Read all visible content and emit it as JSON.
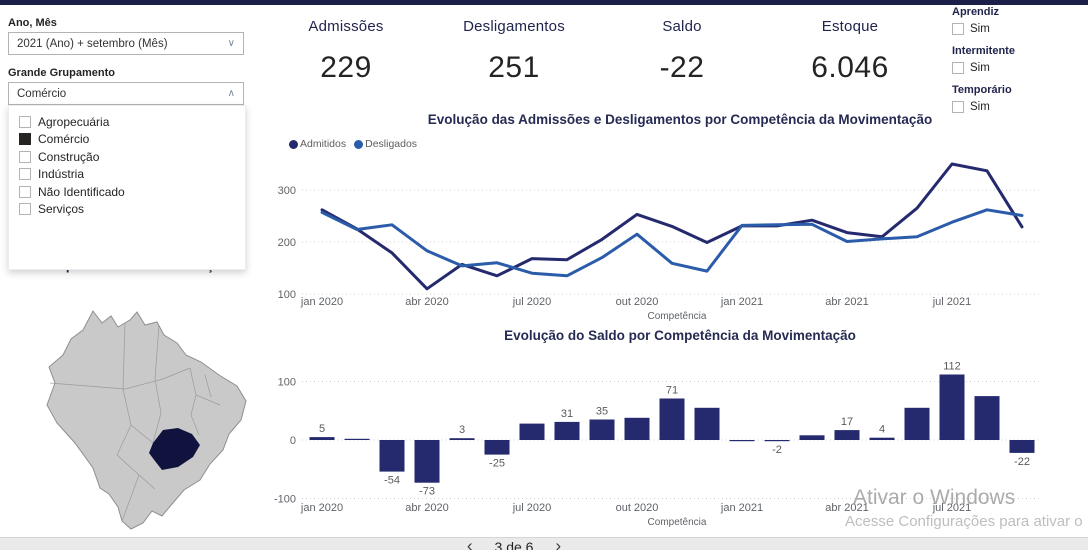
{
  "colors": {
    "topbar": "#1b1f4a",
    "series_admitidos": "#252a6e",
    "series_desligados": "#2b5ca9",
    "bar": "#252a6e",
    "map_base": "#c9c9c9",
    "map_border": "#8f8f8f",
    "map_highlight": "#11133f",
    "axis_text": "#5f6368",
    "gridline": "#cfcfcf"
  },
  "sidebar": {
    "year_month": {
      "label": "Ano, Mês",
      "value": "2021 (Ano) + setembro (Mês)"
    },
    "grouping": {
      "label": "Grande Grupamento",
      "value": "Comércio",
      "options": [
        {
          "label": "Agropecuária",
          "checked": false
        },
        {
          "label": "Comércio",
          "checked": true
        },
        {
          "label": "Construção",
          "checked": false
        },
        {
          "label": "Indústria",
          "checked": false
        },
        {
          "label": "Não Identificado",
          "checked": false
        },
        {
          "label": "Serviços",
          "checked": false
        }
      ]
    },
    "map": {
      "title": "Saldo por Unidade da Federação",
      "highlighted_state": "Minas Gerais"
    }
  },
  "kpis": [
    {
      "label": "Admissões",
      "value": "229"
    },
    {
      "label": "Desligamentos",
      "value": "251"
    },
    {
      "label": "Saldo",
      "value": "-22"
    },
    {
      "label": "Estoque",
      "value": "6.046"
    }
  ],
  "filters": [
    {
      "label": "Aprendiz",
      "option": "Sim",
      "checked": false
    },
    {
      "label": "Intermitente",
      "option": "Sim",
      "checked": false
    },
    {
      "label": "Temporário",
      "option": "Sim",
      "checked": false
    }
  ],
  "chart_data": [
    {
      "type": "line",
      "title": "Evolução das Admissões e Desligamentos por Competência da Movimentação",
      "xlabel": "Competência",
      "x_tick_labels": [
        "jan 2020",
        "abr 2020",
        "jul 2020",
        "out 2020",
        "jan 2021",
        "abr 2021",
        "jul 2021"
      ],
      "x_tick_indices": [
        0,
        3,
        6,
        9,
        12,
        15,
        18
      ],
      "y_ticks": [
        300,
        200,
        100
      ],
      "ylim": [
        100,
        300
      ],
      "grid": "dotted",
      "legend_position": "top-left",
      "months": [
        "jan 2020",
        "fev 2020",
        "mar 2020",
        "abr 2020",
        "mai 2020",
        "jun 2020",
        "jul 2020",
        "ago 2020",
        "set 2020",
        "out 2020",
        "nov 2020",
        "dez 2020",
        "jan 2021",
        "fev 2021",
        "mar 2021",
        "abr 2021",
        "mai 2021",
        "jun 2021",
        "jul 2021",
        "ago 2021",
        "set 2021"
      ],
      "series": [
        {
          "name": "Admitidos",
          "values": [
            262,
            225,
            179,
            110,
            157,
            135,
            168,
            166,
            205,
            253,
            230,
            199,
            231,
            231,
            242,
            218,
            210,
            265,
            350,
            337,
            229
          ]
        },
        {
          "name": "Desligados",
          "values": [
            257,
            224,
            233,
            183,
            154,
            160,
            140,
            135,
            170,
            215,
            159,
            144,
            232,
            233,
            234,
            201,
            206,
            210,
            238,
            262,
            251
          ]
        }
      ]
    },
    {
      "type": "bar",
      "title": "Evolução do Saldo por Competência da Movimentação",
      "xlabel": "Competência",
      "x_tick_labels": [
        "jan 2020",
        "abr 2020",
        "jul 2020",
        "out 2020",
        "jan 2021",
        "abr 2021",
        "jul 2021"
      ],
      "x_tick_indices": [
        0,
        3,
        6,
        9,
        12,
        15,
        18
      ],
      "y_ticks": [
        100,
        0,
        -100
      ],
      "ylim": [
        -100,
        100
      ],
      "grid": "dotted",
      "values": [
        5,
        1,
        -54,
        -73,
        3,
        -25,
        28,
        31,
        35,
        38,
        71,
        55,
        -1,
        -2,
        8,
        17,
        4,
        55,
        112,
        75,
        -22
      ],
      "labels": [
        "5",
        null,
        "-54",
        "-73",
        "3",
        "-25",
        null,
        "31",
        "35",
        null,
        "71",
        null,
        null,
        "-2",
        null,
        "17",
        "4",
        null,
        "112",
        null,
        "-22"
      ]
    }
  ],
  "pagination": {
    "current": "3 de 6",
    "prev_icon": "‹",
    "next_icon": "›"
  },
  "watermark": {
    "line1": "Ativar o Windows",
    "line2": "Acesse Configurações para ativar o"
  },
  "icons": {
    "chevron_down": "∨",
    "chevron_up": "∧"
  }
}
